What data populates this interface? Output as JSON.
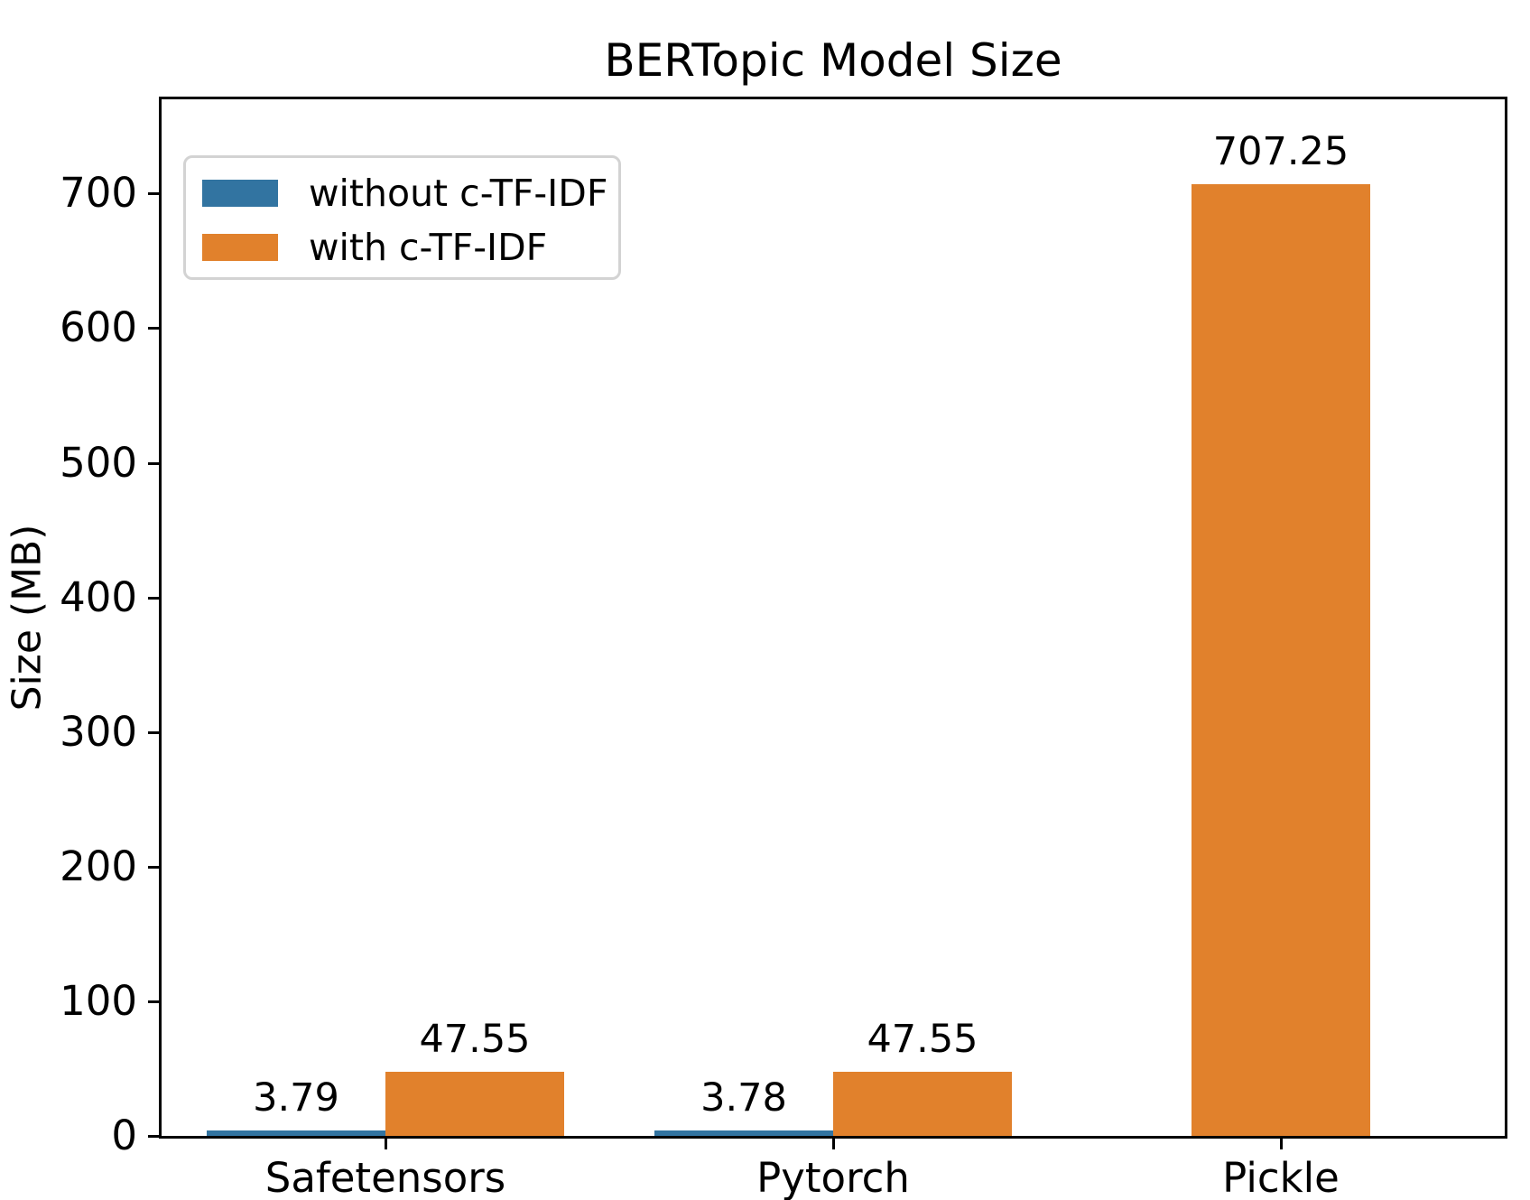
{
  "figure": {
    "title": "BERTopic Model Size",
    "ylabel": "Size (MB)"
  },
  "colors": {
    "spine": "#000000",
    "text": "#000000",
    "legend_border": "#d3d3d3",
    "background": "#ffffff"
  },
  "chart_data": {
    "type": "bar",
    "title": "BERTopic Model Size",
    "xlabel": "",
    "ylabel": "Size (MB)",
    "categories": [
      "Safetensors",
      "Pytorch",
      "Pickle"
    ],
    "series": [
      {
        "name": "without c-TF-IDF",
        "color": "#3274a1",
        "values": [
          3.79,
          3.78,
          null
        ]
      },
      {
        "name": "with c-TF-IDF",
        "color": "#e1812c",
        "values": [
          47.55,
          47.55,
          707.25
        ]
      }
    ],
    "bar_value_labels": [
      [
        "3.79",
        "3.78",
        null
      ],
      [
        "47.55",
        "47.55",
        "707.25"
      ]
    ],
    "ylim": [
      0,
      770
    ],
    "yticks": [
      0,
      100,
      200,
      300,
      400,
      500,
      600,
      700
    ],
    "grid": false,
    "legend_position": "upper left",
    "bar_width_units": 0.4
  }
}
